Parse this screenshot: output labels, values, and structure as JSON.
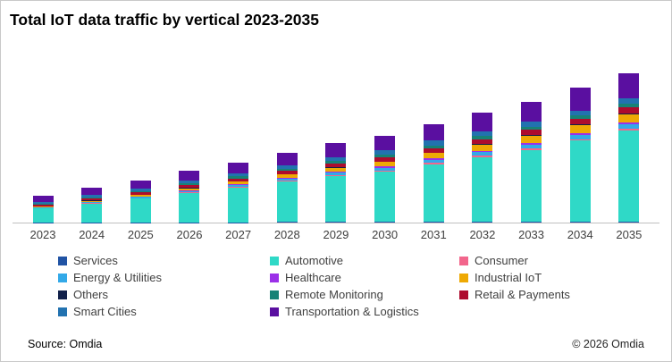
{
  "title": "Total IoT data traffic by vertical 2023-2035",
  "footer": {
    "source": "Source: Omdia",
    "copyright": "© 2026 Omdia"
  },
  "chart_data": {
    "type": "bar",
    "stacked": true,
    "title": "Total IoT data traffic by vertical 2023-2035",
    "xlabel": "",
    "ylabel": "",
    "y_axis_visible": false,
    "grid": false,
    "legend_position": "bottom",
    "categories": [
      "2023",
      "2024",
      "2025",
      "2026",
      "2027",
      "2028",
      "2029",
      "2030",
      "2031",
      "2032",
      "2033",
      "2034",
      "2035"
    ],
    "series": [
      {
        "name": "Services",
        "color": "#2053A4",
        "values": [
          0.3,
          0.35,
          0.4,
          0.45,
          0.5,
          0.55,
          0.6,
          0.65,
          0.7,
          0.8,
          0.9,
          0.95,
          1.0
        ]
      },
      {
        "name": "Automotive",
        "color": "#2FD9C7",
        "values": [
          16,
          21.5,
          27,
          33.5,
          39.5,
          46.5,
          53,
          58,
          66.5,
          74.5,
          83,
          93.5,
          105
        ]
      },
      {
        "name": "Consumer",
        "color": "#F2668C",
        "values": [
          0.6,
          0.7,
          0.8,
          0.9,
          1.0,
          1.1,
          1.2,
          1.35,
          1.5,
          1.65,
          1.8,
          1.9,
          2.0
        ]
      },
      {
        "name": "Energy & Utilities",
        "color": "#33A9E8",
        "values": [
          0.7,
          1.0,
          1.3,
          1.7,
          2.1,
          2.5,
          2.9,
          3.3,
          3.7,
          4.1,
          4.5,
          4.8,
          5.0
        ]
      },
      {
        "name": "Healthcare",
        "color": "#9B30E8",
        "values": [
          0.4,
          0.5,
          0.6,
          0.75,
          0.9,
          1.05,
          1.2,
          1.35,
          1.5,
          1.65,
          1.8,
          1.9,
          2.0
        ]
      },
      {
        "name": "Industrial IoT",
        "color": "#EEA904",
        "values": [
          0.8,
          1.2,
          1.7,
          2.3,
          3.0,
          3.7,
          4.5,
          5.3,
          6.2,
          7.2,
          8.2,
          9.0,
          10.0
        ]
      },
      {
        "name": "Others",
        "color": "#11204A",
        "values": [
          0.3,
          0.35,
          0.4,
          0.45,
          0.5,
          0.55,
          0.6,
          0.65,
          0.7,
          0.8,
          0.9,
          0.95,
          1.0
        ]
      },
      {
        "name": "Retail & Payments",
        "color": "#AD0C2E",
        "values": [
          2.0,
          2.4,
          2.8,
          3.2,
          3.6,
          4.0,
          4.4,
          4.8,
          5.2,
          5.6,
          6.0,
          6.5,
          7.0
        ]
      },
      {
        "name": "Remote Monitoring",
        "color": "#178276",
        "values": [
          1.0,
          1.2,
          1.5,
          1.8,
          2.1,
          2.4,
          2.7,
          3.0,
          3.2,
          3.4,
          3.6,
          3.8,
          4.0
        ]
      },
      {
        "name": "Smart Cities",
        "color": "#2272B0",
        "values": [
          2.2,
          2.6,
          3.0,
          3.4,
          3.8,
          4.2,
          4.6,
          5.0,
          5.4,
          5.8,
          6.0,
          6.0,
          6.0
        ]
      },
      {
        "name": "Transportation & Logistics",
        "color": "#5A0FA0",
        "values": [
          6.5,
          8.0,
          9.5,
          11.0,
          12.5,
          14.0,
          16.0,
          17.0,
          19.0,
          21.0,
          23.0,
          26.0,
          29.0
        ]
      }
    ],
    "stack_order_note": "series listed bottom-to-top; values are relative estimates (chart shows no y-axis)",
    "legend_order": [
      "Services",
      "Automotive",
      "Consumer",
      "Energy & Utilities",
      "Healthcare",
      "Industrial IoT",
      "Others",
      "Remote Monitoring",
      "Retail & Payments",
      "Smart Cities",
      "Transportation & Logistics"
    ]
  }
}
